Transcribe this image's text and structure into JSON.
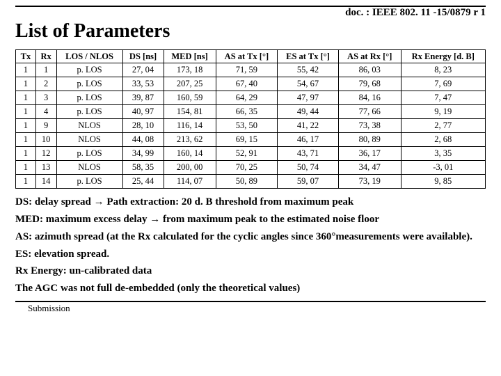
{
  "doc_id": "doc. : IEEE 802. 11 -15/0879 r 1",
  "title": "List of Parameters",
  "table": {
    "columns": [
      "Tx",
      "Rx",
      "LOS / NLOS",
      "DS [ns]",
      "MED [ns]",
      "AS at Tx [°]",
      "ES at Tx [°]",
      "AS at Rx [°]",
      "Rx Energy [d. B]"
    ],
    "rows": [
      [
        "1",
        "1",
        "p. LOS",
        "27, 04",
        "173, 18",
        "71, 59",
        "55, 42",
        "86, 03",
        "8, 23"
      ],
      [
        "1",
        "2",
        "p. LOS",
        "33, 53",
        "207, 25",
        "67, 40",
        "54, 67",
        "79, 68",
        "7, 69"
      ],
      [
        "1",
        "3",
        "p. LOS",
        "39, 87",
        "160, 59",
        "64, 29",
        "47, 97",
        "84, 16",
        "7, 47"
      ],
      [
        "1",
        "4",
        "p. LOS",
        "40, 97",
        "154, 81",
        "66, 35",
        "49, 44",
        "77, 66",
        "9, 19"
      ],
      [
        "1",
        "9",
        "NLOS",
        "28, 10",
        "116, 14",
        "53, 50",
        "41, 22",
        "73, 38",
        "2, 77"
      ],
      [
        "1",
        "10",
        "NLOS",
        "44, 08",
        "213, 62",
        "69, 15",
        "46, 17",
        "80, 89",
        "2, 68"
      ],
      [
        "1",
        "12",
        "p. LOS",
        "34, 99",
        "160, 14",
        "52, 91",
        "43, 71",
        "36, 17",
        "3, 35"
      ],
      [
        "1",
        "13",
        "NLOS",
        "58, 35",
        "200, 00",
        "70, 25",
        "50, 74",
        "34, 47",
        "-3, 01"
      ],
      [
        "1",
        "14",
        "p. LOS",
        "25, 44",
        "114, 07",
        "50, 89",
        "59, 07",
        "73, 19",
        "9, 85"
      ]
    ]
  },
  "notes": {
    "n1": "DS: delay spread → Path extraction: 20 d. B threshold from maximum peak",
    "n2": "MED: maximum excess delay → from maximum peak to the estimated noise floor",
    "n3": "AS: azimuth spread (at the Rx calculated for the cyclic angles since 360°measurements were available).",
    "n4": "ES: elevation spread.",
    "n5": "Rx Energy: un-calibrated data",
    "n6": "The AGC was not full de-embedded (only the theoretical values)"
  },
  "footer": "Submission"
}
